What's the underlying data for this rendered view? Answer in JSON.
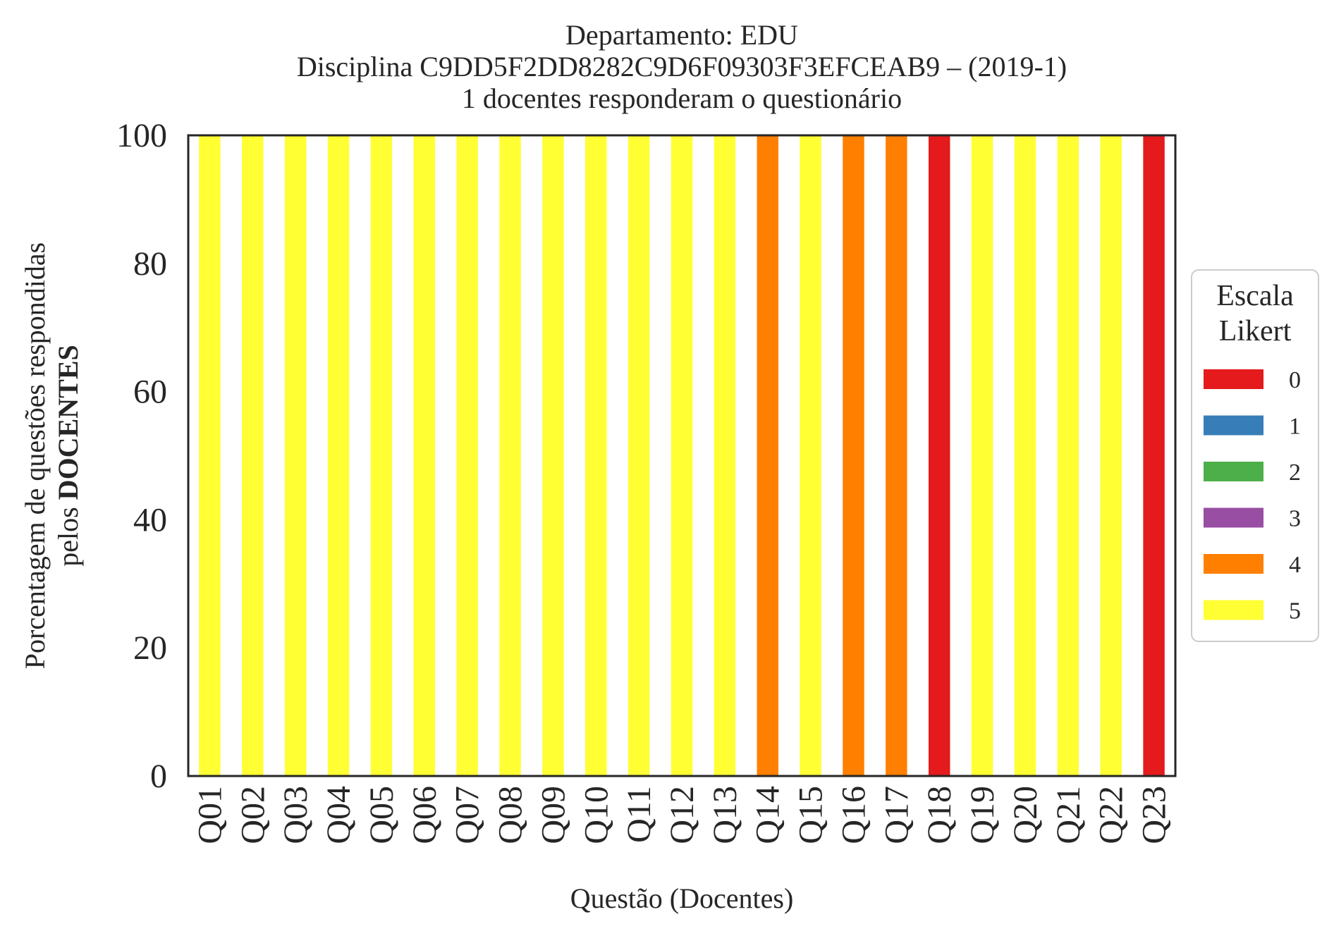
{
  "chart_data": {
    "type": "bar",
    "stacked": true,
    "title_lines": [
      "Departamento: EDU",
      "Disciplina C9DD5F2DD8282C9D6F09303F3EFCEAB9 – (2019-1)",
      "1 docentes responderam o questionário"
    ],
    "xlabel": "Questão (Docentes)",
    "ylabel_line1": "Porcentagem de questões respondidas",
    "ylabel_line2_prefix": "pelos ",
    "ylabel_line2_bold": "DOCENTES",
    "ylim": [
      0,
      100
    ],
    "yticks": [
      "0",
      "20",
      "40",
      "60",
      "80",
      "100"
    ],
    "grid": false,
    "legend": {
      "title_lines": [
        "Escala",
        "Likert"
      ],
      "placement": "right-center",
      "entries": [
        {
          "label": "0",
          "color": "#e41a1c"
        },
        {
          "label": "1",
          "color": "#377eb8"
        },
        {
          "label": "2",
          "color": "#4daf4a"
        },
        {
          "label": "3",
          "color": "#984ea3"
        },
        {
          "label": "4",
          "color": "#ff7f00"
        },
        {
          "label": "5",
          "color": "#ffff33"
        }
      ]
    },
    "categories": [
      "Q01",
      "Q02",
      "Q03",
      "Q04",
      "Q05",
      "Q06",
      "Q07",
      "Q08",
      "Q09",
      "Q10",
      "Q11",
      "Q12",
      "Q13",
      "Q14",
      "Q15",
      "Q16",
      "Q17",
      "Q18",
      "Q19",
      "Q20",
      "Q21",
      "Q22",
      "Q23"
    ],
    "series": [
      {
        "name": "0",
        "color": "#e41a1c",
        "values": [
          0,
          0,
          0,
          0,
          0,
          0,
          0,
          0,
          0,
          0,
          0,
          0,
          0,
          0,
          0,
          0,
          0,
          100,
          0,
          0,
          0,
          0,
          100
        ]
      },
      {
        "name": "1",
        "color": "#377eb8",
        "values": [
          0,
          0,
          0,
          0,
          0,
          0,
          0,
          0,
          0,
          0,
          0,
          0,
          0,
          0,
          0,
          0,
          0,
          0,
          0,
          0,
          0,
          0,
          0
        ]
      },
      {
        "name": "2",
        "color": "#4daf4a",
        "values": [
          0,
          0,
          0,
          0,
          0,
          0,
          0,
          0,
          0,
          0,
          0,
          0,
          0,
          0,
          0,
          0,
          0,
          0,
          0,
          0,
          0,
          0,
          0
        ]
      },
      {
        "name": "3",
        "color": "#984ea3",
        "values": [
          0,
          0,
          0,
          0,
          0,
          0,
          0,
          0,
          0,
          0,
          0,
          0,
          0,
          0,
          0,
          0,
          0,
          0,
          0,
          0,
          0,
          0,
          0
        ]
      },
      {
        "name": "4",
        "color": "#ff7f00",
        "values": [
          0,
          0,
          0,
          0,
          0,
          0,
          0,
          0,
          0,
          0,
          0,
          0,
          0,
          100,
          0,
          100,
          100,
          0,
          0,
          0,
          0,
          0,
          0
        ]
      },
      {
        "name": "5",
        "color": "#ffff33",
        "values": [
          100,
          100,
          100,
          100,
          100,
          100,
          100,
          100,
          100,
          100,
          100,
          100,
          100,
          0,
          100,
          0,
          0,
          0,
          100,
          100,
          100,
          100,
          0
        ]
      }
    ]
  }
}
